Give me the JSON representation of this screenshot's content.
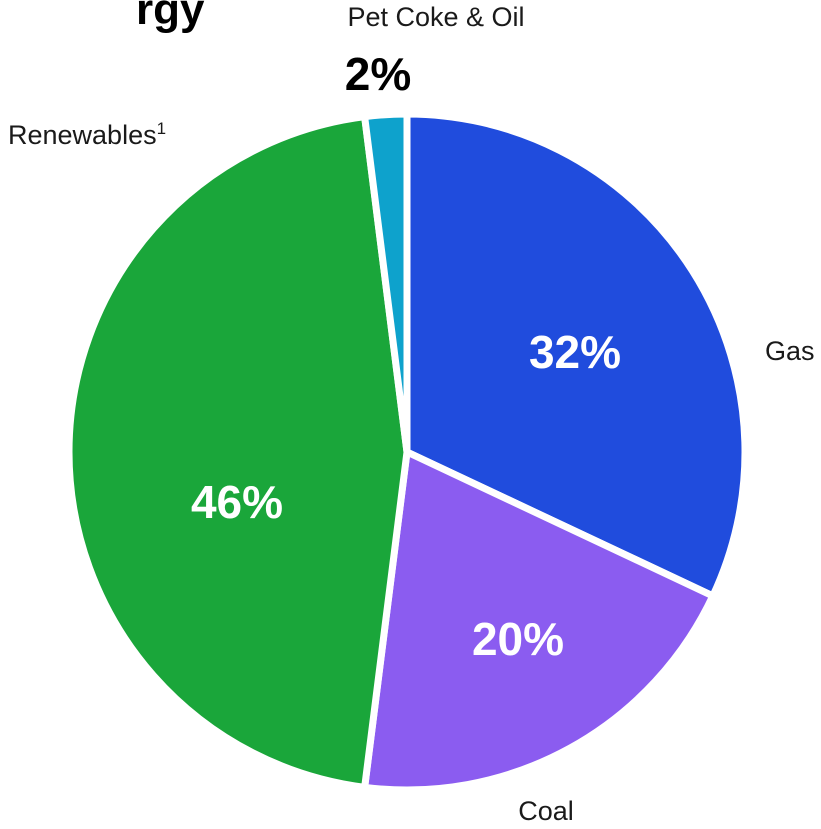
{
  "title_fragment": "rgy",
  "chart_data": {
    "type": "pie",
    "title": "",
    "start_angle_deg": 0,
    "direction": "clockwise",
    "slices": [
      {
        "label": "Gas",
        "value": 32,
        "display": "32%",
        "color": "#204CDD",
        "label_position": "outside-right",
        "value_position": "inside"
      },
      {
        "label": "Coal",
        "value": 20,
        "display": "20%",
        "color": "#8B5CF0",
        "label_position": "outside-bottom",
        "value_position": "inside"
      },
      {
        "label": "Renewables",
        "label_superscript": "1",
        "value": 46,
        "display": "46%",
        "color": "#1AA63A",
        "label_position": "outside-top-left",
        "value_position": "inside"
      },
      {
        "label": "Pet Coke & Oil",
        "value": 2,
        "display": "2%",
        "color": "#0EA2CC",
        "label_position": "outside-top",
        "value_position": "outside-top"
      }
    ]
  }
}
